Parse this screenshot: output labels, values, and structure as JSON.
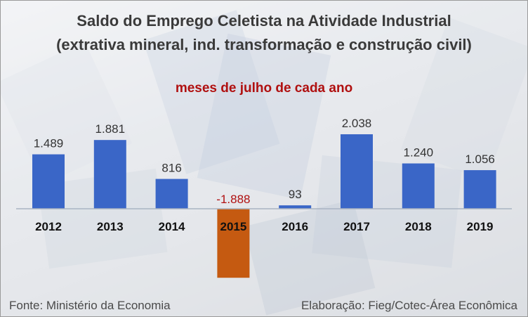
{
  "header": {
    "title": "Saldo do Emprego Celetista na Atividade Industrial",
    "title_line2": "(extrativa mineral, ind. transformação e construção civil)",
    "subtitle": "meses de julho de cada ano"
  },
  "footer": {
    "source": "Fonte: Ministério da Economia",
    "credit": "Elaboração: Fieg/Cotec-Área Econômica"
  },
  "chart_data": {
    "type": "bar",
    "categories": [
      "2012",
      "2013",
      "2014",
      "2015",
      "2016",
      "2017",
      "2018",
      "2019"
    ],
    "values": [
      1489,
      1881,
      816,
      -1888,
      93,
      2038,
      1240,
      1056
    ],
    "data_labels": [
      "1.489",
      "1.881",
      "816",
      "-1.888",
      "93",
      "2.038",
      "1.240",
      "1.056"
    ],
    "title": "Saldo do Emprego Celetista na Atividade Industrial",
    "xlabel": "",
    "ylabel": "",
    "ylim": [
      -2100,
      2300
    ],
    "grid": false,
    "legend": "none"
  },
  "colors": {
    "positive_bar": "#3a66c7",
    "negative_bar": "#c55a11",
    "negative_label": "#b01010",
    "axis": "#a9b4c2"
  }
}
